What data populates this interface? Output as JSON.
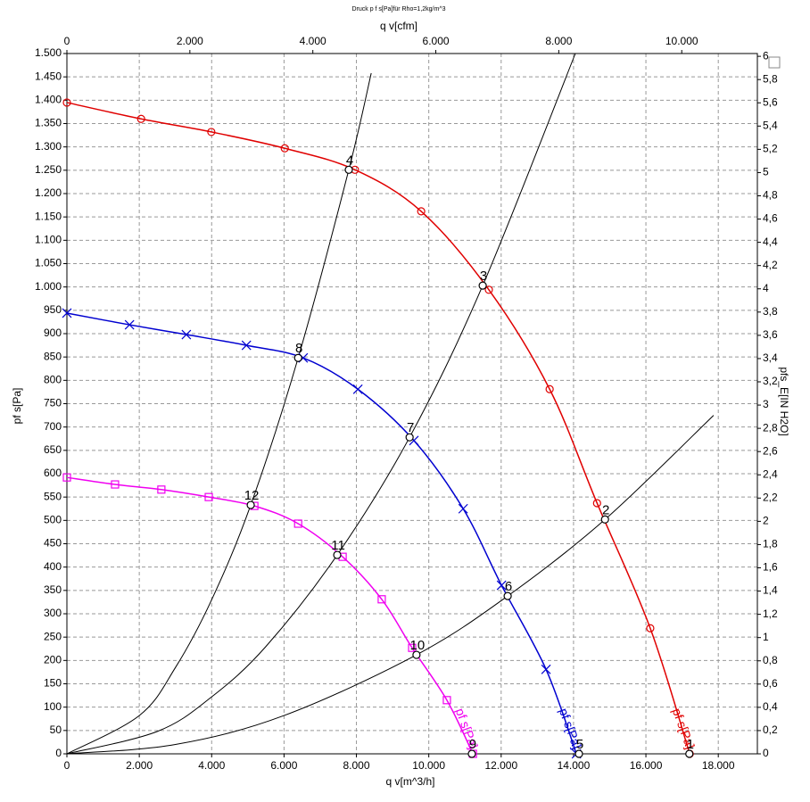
{
  "chart_data": {
    "type": "line",
    "title": "Druck p f s[Pa]für Rho=1,2kg/m^3",
    "x_label": "q v[m^3/h]",
    "x2_label": "q v[cfm]",
    "y_label": "pf s[Pa]",
    "y2_label": "pfs_E[IN H2O]",
    "xlim": [
      0,
      19080
    ],
    "x2lim": [
      0,
      11230
    ],
    "ylim": [
      0,
      1500
    ],
    "y2lim": [
      0,
      6.024
    ],
    "grid": true,
    "xticks": [
      0,
      {
        "value": 2000,
        "label": "2.000"
      },
      {
        "value": 4000,
        "label": "4.000"
      },
      {
        "value": 6000,
        "label": "6.000"
      },
      {
        "value": 8000,
        "label": "8.000"
      },
      {
        "value": 10000,
        "label": "10.000"
      },
      {
        "value": 12000,
        "label": "12.000"
      },
      {
        "value": 14000,
        "label": "14.000"
      },
      {
        "value": 16000,
        "label": "16.000"
      },
      {
        "value": 18000,
        "label": "18.000"
      }
    ],
    "x2ticks": [
      0,
      {
        "value": 2000,
        "label": "2.000"
      },
      {
        "value": 4000,
        "label": "4.000"
      },
      {
        "value": 6000,
        "label": "6.000"
      },
      {
        "value": 8000,
        "label": "8.000"
      },
      {
        "value": 10000,
        "label": "10.000"
      }
    ],
    "yticks": [
      0,
      50,
      100,
      150,
      200,
      250,
      300,
      350,
      400,
      450,
      500,
      550,
      600,
      650,
      700,
      750,
      800,
      850,
      900,
      950,
      {
        "value": 1000,
        "label": "1.000"
      },
      {
        "value": 1050,
        "label": "1.050"
      },
      {
        "value": 1100,
        "label": "1.100"
      },
      {
        "value": 1150,
        "label": "1.150"
      },
      {
        "value": 1200,
        "label": "1.200"
      },
      {
        "value": 1250,
        "label": "1.250"
      },
      {
        "value": 1300,
        "label": "1.300"
      },
      {
        "value": 1350,
        "label": "1.350"
      },
      {
        "value": 1400,
        "label": "1.400"
      },
      {
        "value": 1450,
        "label": "1.450"
      },
      {
        "value": 1500,
        "label": "1.500"
      }
    ],
    "y2ticks": [
      0,
      {
        "value": 0.2,
        "label": "0,2"
      },
      {
        "value": 0.4,
        "label": "0,4"
      },
      {
        "value": 0.6,
        "label": "0,6"
      },
      {
        "value": 0.8,
        "label": "0,8"
      },
      1,
      {
        "value": 1.2,
        "label": "1,2"
      },
      {
        "value": 1.4,
        "label": "1,4"
      },
      {
        "value": 1.6,
        "label": "1,6"
      },
      {
        "value": 1.8,
        "label": "1,8"
      },
      2,
      {
        "value": 2.2,
        "label": "2,2"
      },
      {
        "value": 2.4,
        "label": "2,4"
      },
      {
        "value": 2.6,
        "label": "2,6"
      },
      {
        "value": 2.8,
        "label": "2,8"
      },
      3,
      {
        "value": 3.2,
        "label": "3,2"
      },
      {
        "value": 3.4,
        "label": "3,4"
      },
      {
        "value": 3.6,
        "label": "3,6"
      },
      {
        "value": 3.8,
        "label": "3,8"
      },
      4,
      {
        "value": 4.2,
        "label": "4,2"
      },
      {
        "value": 4.4,
        "label": "4,4"
      },
      {
        "value": 4.6,
        "label": "4,6"
      },
      {
        "value": 4.8,
        "label": "4,8"
      },
      5,
      {
        "value": 5.2,
        "label": "5,2"
      },
      {
        "value": 5.4,
        "label": "5,4"
      },
      {
        "value": 5.6,
        "label": "5,6"
      },
      {
        "value": 5.8,
        "label": "5,8"
      },
      6
    ],
    "series": [
      {
        "name": "pf s[Pa]",
        "color": "#e00000",
        "marker": "circle",
        "x": [
          0,
          2050,
          3990,
          6020,
          7960,
          9790,
          11660,
          13340,
          14650,
          16120,
          17210
        ],
        "values": [
          1395,
          1360,
          1332,
          1297,
          1251,
          1162,
          994,
          781,
          537,
          269,
          0
        ]
      },
      {
        "name": "pf s[Pa]",
        "color": "#0000d0",
        "marker": "x",
        "x": [
          0,
          1730,
          3300,
          4960,
          6530,
          8040,
          9590,
          10950,
          12010,
          13240,
          14080
        ],
        "values": [
          944,
          919,
          898,
          875,
          848,
          781,
          671,
          525,
          361,
          181,
          0
        ]
      },
      {
        "name": "pf s[Pa]",
        "color": "#f000f0",
        "marker": "square",
        "x": [
          0,
          1330,
          2610,
          3920,
          5180,
          6390,
          7620,
          8700,
          9540,
          10500,
          11220
        ],
        "values": [
          592,
          577,
          566,
          550,
          531,
          493,
          422,
          331,
          227,
          115,
          0
        ]
      }
    ],
    "system_curves": [
      {
        "x": [
          0,
          2000,
          3000,
          4000,
          5080,
          6390,
          7790,
          8410
        ],
        "values": [
          0,
          82,
          185,
          330,
          533,
          848,
          1251,
          1458
        ]
      },
      {
        "x": [
          0,
          2500,
          4000,
          5500,
          7470,
          9470,
          11490,
          14050
        ],
        "values": [
          0,
          48,
          122,
          230,
          426,
          678,
          1003,
          1500
        ]
      },
      {
        "x": [
          0,
          3000,
          6000,
          9660,
          12180,
          14870,
          17870
        ],
        "values": [
          0,
          20,
          82,
          212,
          338,
          502,
          725
        ]
      }
    ],
    "points": [
      {
        "label": "1",
        "x": 17200,
        "y": 0
      },
      {
        "label": "2",
        "x": 14870,
        "y": 502
      },
      {
        "label": "3",
        "x": 11490,
        "y": 1003
      },
      {
        "label": "4",
        "x": 7790,
        "y": 1251
      },
      {
        "label": "5",
        "x": 14150,
        "y": 0
      },
      {
        "label": "6",
        "x": 12180,
        "y": 338
      },
      {
        "label": "7",
        "x": 9470,
        "y": 678
      },
      {
        "label": "8",
        "x": 6390,
        "y": 848
      },
      {
        "label": "9",
        "x": 11190,
        "y": 0
      },
      {
        "label": "10",
        "x": 9660,
        "y": 212
      },
      {
        "label": "11",
        "x": 7470,
        "y": 426
      },
      {
        "label": "12",
        "x": 5080,
        "y": 533
      }
    ]
  }
}
